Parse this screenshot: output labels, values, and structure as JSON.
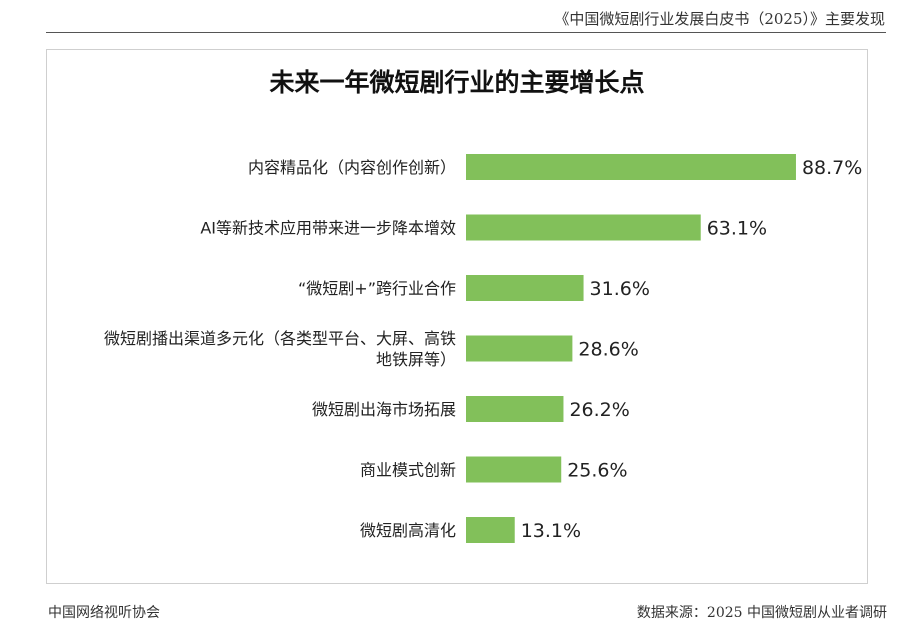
{
  "document": {
    "header_title": "《中国微短剧行业发展白皮书（2025）》主要发现",
    "footer_left": "中国网络视听协会",
    "footer_right": "数据来源：2025 中国微短剧从业者调研"
  },
  "chart_data": {
    "type": "bar",
    "orientation": "horizontal",
    "title": "未来一年微短剧行业的主要增长点",
    "categories": [
      [
        "内容精品化（内容创作创新）"
      ],
      [
        "AI等新技术应用带来进一步降本增效"
      ],
      [
        "“微短剧+”跨行业合作"
      ],
      [
        "微短剧播出渠道多元化（各类型平台、大屏、高铁",
        "地铁屏等）"
      ],
      [
        "微短剧出海市场拓展"
      ],
      [
        "商业模式创新"
      ],
      [
        "微短剧高清化"
      ]
    ],
    "values": [
      88.7,
      63.1,
      31.6,
      28.6,
      26.2,
      25.6,
      13.1
    ],
    "value_labels": [
      "88.7%",
      "63.1%",
      "31.6%",
      "28.6%",
      "26.2%",
      "25.6%",
      "13.1%"
    ],
    "unit": "%",
    "xlim": [
      0,
      100
    ],
    "grid": false,
    "legend": "none",
    "colors": {
      "bar": "#82c05a",
      "text": "#222222"
    }
  }
}
